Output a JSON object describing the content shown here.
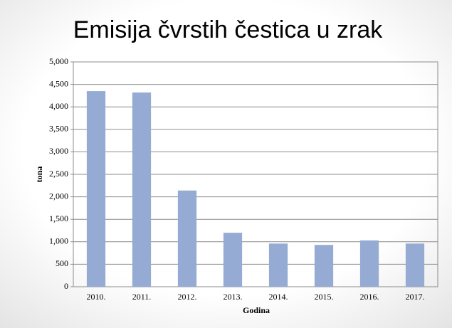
{
  "chart_data": {
    "type": "bar",
    "title": "Emisija čvrstih čestica u zrak",
    "x_label": "Godina",
    "y_label": "tona",
    "categories": [
      "2010.",
      "2011.",
      "2012.",
      "2013.",
      "2014.",
      "2015.",
      "2016.",
      "2017."
    ],
    "values": [
      4350,
      4320,
      2140,
      1200,
      960,
      930,
      1030,
      960
    ],
    "color": "#95abd4",
    "ylim": [
      0,
      5000
    ],
    "yticks": [
      0,
      500,
      {
        "value": 1000,
        "label": "1,000"
      },
      {
        "value": 1500,
        "label": "1,500"
      },
      {
        "value": 2000,
        "label": "2,000"
      },
      {
        "value": 2500,
        "label": "2,500"
      },
      {
        "value": 3000,
        "label": "3,000"
      },
      {
        "value": 3500,
        "label": "3,500"
      },
      {
        "value": 4000,
        "label": "4,000"
      },
      {
        "value": 4500,
        "label": "4,500"
      },
      {
        "value": 5000,
        "label": "5,000"
      }
    ],
    "grid": true
  }
}
